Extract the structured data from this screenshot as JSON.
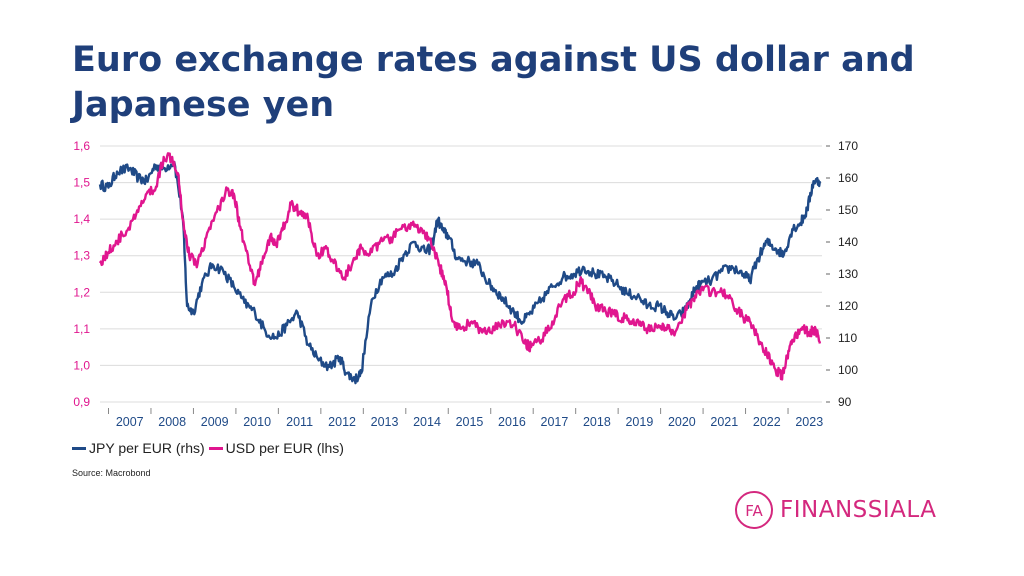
{
  "title": "Euro exchange rates against US dollar and Japanese yen",
  "source": "Source: Macrobond",
  "logo": {
    "mark_text": "FA",
    "name": "FINANSSIALA"
  },
  "legend": {
    "jpy_label": "JPY per EUR (rhs)",
    "usd_label": "USD per EUR (lhs)"
  },
  "colors": {
    "jpy": "#1f4a87",
    "usd": "#e0168f",
    "title": "#1f3f7a",
    "brand": "#d4287e"
  },
  "chart_data": {
    "type": "line",
    "grid": true,
    "legend_position": "bottom-left",
    "x_axis": {
      "min": 2006.8,
      "max": 2023.8,
      "categories": [
        "2007",
        "2008",
        "2009",
        "2010",
        "2011",
        "2012",
        "2013",
        "2014",
        "2015",
        "2016",
        "2017",
        "2018",
        "2019",
        "2020",
        "2021",
        "2022",
        "2023"
      ]
    },
    "y_left": {
      "min": 0.9,
      "max": 1.6,
      "ticks": [
        "0,9",
        "1,0",
        "1,1",
        "1,2",
        "1,3",
        "1,4",
        "1,5",
        "1,6"
      ]
    },
    "y_right": {
      "min": 90,
      "max": 170,
      "ticks": [
        "90",
        "100",
        "110",
        "120",
        "130",
        "140",
        "150",
        "160",
        "170"
      ]
    },
    "series": [
      {
        "name": "JPY per EUR (rhs)",
        "axis": "right",
        "x": [
          2006.8,
          2007.0,
          2007.2,
          2007.5,
          2007.7,
          2007.9,
          2008.1,
          2008.3,
          2008.55,
          2008.75,
          2008.85,
          2009.0,
          2009.2,
          2009.45,
          2009.7,
          2009.95,
          2010.2,
          2010.45,
          2010.7,
          2010.95,
          2011.2,
          2011.45,
          2011.7,
          2011.95,
          2012.2,
          2012.45,
          2012.6,
          2012.8,
          2012.95,
          2013.2,
          2013.45,
          2013.7,
          2013.95,
          2014.2,
          2014.45,
          2014.6,
          2014.75,
          2014.9,
          2015.0,
          2015.2,
          2015.45,
          2015.7,
          2015.95,
          2016.1,
          2016.3,
          2016.55,
          2016.75,
          2016.95,
          2017.2,
          2017.45,
          2017.7,
          2017.95,
          2018.2,
          2018.45,
          2018.7,
          2018.95,
          2019.2,
          2019.45,
          2019.7,
          2019.95,
          2020.15,
          2020.35,
          2020.6,
          2020.8,
          2020.95,
          2021.2,
          2021.45,
          2021.7,
          2021.95,
          2022.1,
          2022.3,
          2022.5,
          2022.7,
          2022.9,
          2023.1,
          2023.3,
          2023.45,
          2023.6,
          2023.75
        ],
        "values": [
          158,
          157,
          162,
          163,
          160,
          159,
          164,
          163,
          165,
          148,
          120,
          118,
          127,
          133,
          131,
          126,
          121,
          118,
          112,
          110,
          114,
          118,
          108,
          103,
          101,
          104,
          99,
          97,
          99,
          122,
          129,
          130,
          136,
          140,
          137,
          138,
          147,
          143,
          142,
          135,
          134,
          133,
          127,
          125,
          122,
          118,
          115,
          118,
          122,
          126,
          129,
          130,
          132,
          130,
          129,
          127,
          124,
          123,
          120,
          120,
          118,
          116,
          119,
          125,
          127,
          128,
          131,
          132,
          130,
          128,
          135,
          140,
          138,
          136,
          144,
          146,
          150,
          159,
          159
        ]
      },
      {
        "name": "USD per EUR (lhs)",
        "axis": "left",
        "x": [
          2006.8,
          2007.0,
          2007.2,
          2007.45,
          2007.7,
          2007.9,
          2008.1,
          2008.3,
          2008.5,
          2008.65,
          2008.75,
          2008.9,
          2009.1,
          2009.3,
          2009.55,
          2009.8,
          2009.95,
          2010.1,
          2010.3,
          2010.45,
          2010.6,
          2010.8,
          2010.95,
          2011.1,
          2011.3,
          2011.5,
          2011.7,
          2011.9,
          2012.1,
          2012.3,
          2012.55,
          2012.8,
          2012.95,
          2013.2,
          2013.45,
          2013.7,
          2013.95,
          2014.2,
          2014.45,
          2014.6,
          2014.8,
          2014.95,
          2015.1,
          2015.3,
          2015.55,
          2015.8,
          2016.0,
          2016.3,
          2016.55,
          2016.8,
          2016.95,
          2017.2,
          2017.45,
          2017.7,
          2017.95,
          2018.1,
          2018.3,
          2018.5,
          2018.7,
          2018.9,
          2019.1,
          2019.3,
          2019.5,
          2019.7,
          2019.95,
          2020.15,
          2020.3,
          2020.55,
          2020.75,
          2020.95,
          2021.2,
          2021.45,
          2021.7,
          2021.95,
          2022.1,
          2022.3,
          2022.5,
          2022.7,
          2022.85,
          2022.95,
          2023.1,
          2023.3,
          2023.5,
          2023.65,
          2023.75
        ],
        "values": [
          1.28,
          1.31,
          1.34,
          1.37,
          1.42,
          1.47,
          1.48,
          1.57,
          1.57,
          1.52,
          1.4,
          1.3,
          1.28,
          1.35,
          1.42,
          1.48,
          1.47,
          1.38,
          1.28,
          1.22,
          1.28,
          1.35,
          1.33,
          1.37,
          1.44,
          1.42,
          1.4,
          1.3,
          1.32,
          1.28,
          1.24,
          1.29,
          1.32,
          1.31,
          1.34,
          1.35,
          1.38,
          1.38,
          1.36,
          1.33,
          1.27,
          1.22,
          1.12,
          1.1,
          1.12,
          1.09,
          1.09,
          1.12,
          1.11,
          1.06,
          1.05,
          1.07,
          1.12,
          1.18,
          1.2,
          1.23,
          1.2,
          1.16,
          1.15,
          1.14,
          1.13,
          1.12,
          1.11,
          1.1,
          1.11,
          1.1,
          1.09,
          1.14,
          1.18,
          1.21,
          1.2,
          1.2,
          1.17,
          1.13,
          1.12,
          1.07,
          1.03,
          0.99,
          0.97,
          1.01,
          1.07,
          1.1,
          1.09,
          1.1,
          1.06
        ]
      }
    ]
  }
}
